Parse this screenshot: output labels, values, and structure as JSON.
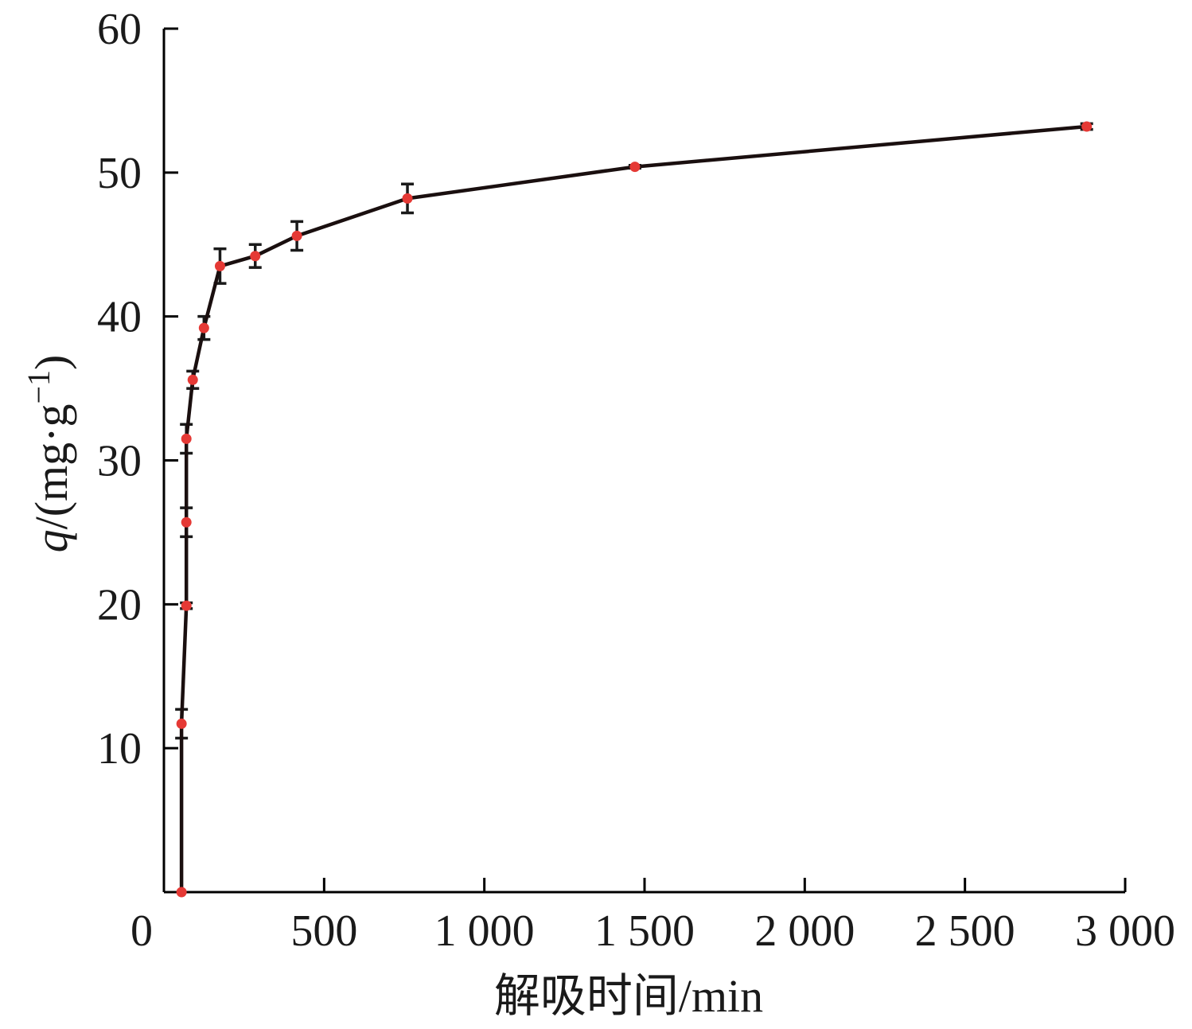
{
  "chart_data": {
    "type": "line",
    "xlabel": "解吸时间/min",
    "ylabel_var": "q",
    "ylabel_unit": "/(mg·g",
    "ylabel_sup": "−1",
    "ylabel_close": ")",
    "xlim": [
      0,
      3000
    ],
    "ylim": [
      0,
      60
    ],
    "x_ticks": [
      0,
      500,
      1000,
      1500,
      2000,
      2500,
      3000
    ],
    "x_tick_labels": [
      "0",
      "500",
      "1 000",
      "1 500",
      "2 000",
      "2 500",
      "3 000"
    ],
    "y_ticks": [
      10,
      20,
      30,
      40,
      50,
      60
    ],
    "y_tick_labels": [
      "10",
      "20",
      "30",
      "40",
      "50",
      "60"
    ],
    "grid": false,
    "colors": {
      "line": "#1a0f0f",
      "marker": "#e53935",
      "errorbar": "#1a1a1a"
    },
    "series": [
      {
        "x": [
          55,
          55,
          70,
          70,
          70,
          90,
          125,
          175,
          285,
          415,
          760,
          1470,
          2880
        ],
        "y": [
          0,
          11.7,
          19.9,
          25.7,
          31.5,
          35.6,
          39.2,
          43.5,
          44.2,
          45.6,
          48.2,
          50.4,
          53.2
        ],
        "err": [
          0,
          1.0,
          0.2,
          1.0,
          1.0,
          0.6,
          0.8,
          1.2,
          0.8,
          1.0,
          1.0,
          0.1,
          0.2
        ]
      }
    ]
  }
}
